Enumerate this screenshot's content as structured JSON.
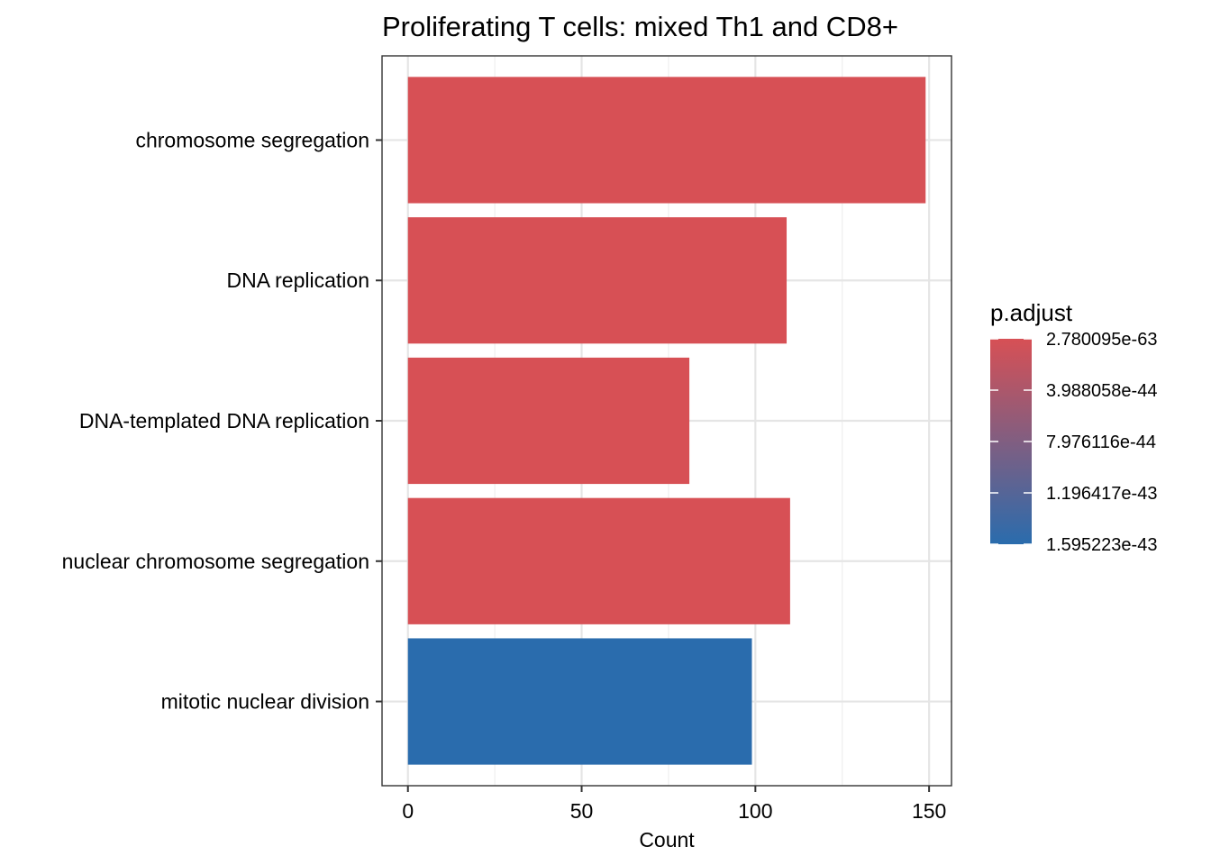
{
  "chart_data": {
    "type": "bar",
    "orientation": "horizontal",
    "title": "Proliferating T cells: mixed Th1 and CD8+",
    "xlabel": "Count",
    "ylabel": "",
    "categories": [
      "chromosome segregation",
      "DNA replication",
      "DNA-templated DNA replication",
      "nuclear chromosome segregation",
      "mitotic nuclear division"
    ],
    "values": [
      149,
      109,
      81,
      110,
      99
    ],
    "p_adjust": [
      2.780095e-63,
      2.780095e-63,
      2.780095e-63,
      2.780095e-63,
      1.595223e-43
    ],
    "xlim": [
      -7.45,
      156.45
    ],
    "x_ticks": [
      0,
      50,
      100,
      150
    ],
    "x_tick_labels": [
      "0",
      "50",
      "100",
      "150"
    ],
    "grid": true,
    "legend": {
      "title": "p.adjust",
      "placement": "right",
      "labels": [
        "2.780095e-63",
        "3.988058e-44",
        "7.976116e-44",
        "1.196417e-43",
        "1.595223e-43"
      ],
      "low_color": "#d75055",
      "high_color": "#2a6cad"
    }
  }
}
